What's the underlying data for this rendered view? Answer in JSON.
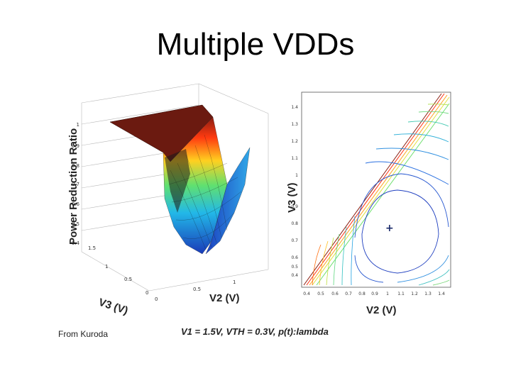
{
  "slide": {
    "title": "Multiple VDDs",
    "credit": "From Kuroda",
    "caption": "V1 = 1.5V, VTH = 0.3V, p(t):lambda"
  },
  "surface_plot": {
    "zlabel": "Power Reduction Ratio",
    "x_label": "V3  (V)",
    "y_label": "V2  (V)",
    "z_ticks": [
      "1",
      "0.9",
      "0.8",
      "0.7",
      "0.6",
      "0.5",
      "0.4"
    ],
    "v3_ticks": [
      "1.5",
      "1",
      "0.5",
      "0"
    ],
    "v2_ticks": [
      "0",
      "0.5",
      "1"
    ]
  },
  "contour_plot": {
    "xlabel": "V2  (V)",
    "ylabel": "V3  (V)",
    "x_ticks": [
      "0.4",
      "0.5",
      "0.6",
      "0.7",
      "0.8",
      "0.9",
      "1",
      "1.1",
      "1.2",
      "1.3",
      "1.4"
    ],
    "y_ticks": [
      "1.4",
      "1.3",
      "1.2",
      "1.1",
      "1",
      "0.9",
      "0.8",
      "0.7",
      "0.6",
      "0.5",
      "0.4"
    ],
    "optimum_marker": "+"
  },
  "colors": {
    "peak": "#6b1a10",
    "valley": "#2255c8",
    "mid": "#e8d030"
  }
}
